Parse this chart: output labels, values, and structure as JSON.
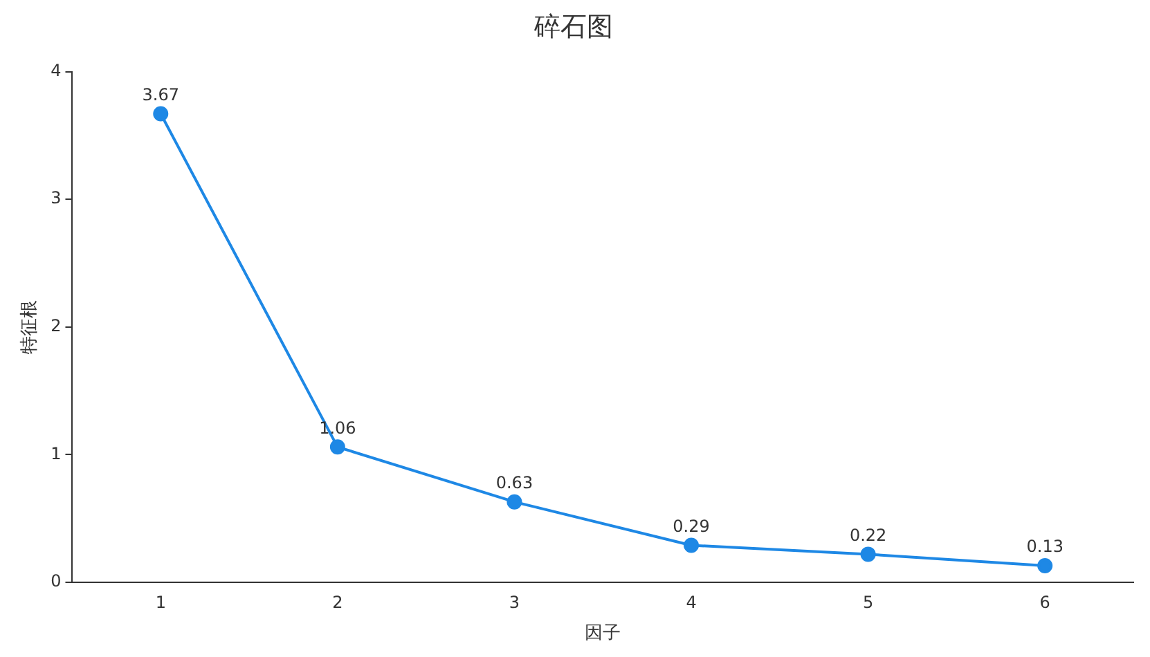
{
  "chart_data": {
    "type": "line",
    "title": "碎石图",
    "xlabel": "因子",
    "ylabel": "特征根",
    "categories": [
      "1",
      "2",
      "3",
      "4",
      "5",
      "6"
    ],
    "series": [
      {
        "color": "#1e88e5",
        "values": [
          3.67,
          1.06,
          0.63,
          0.29,
          0.22,
          0.13
        ]
      }
    ],
    "ylim": [
      0,
      4
    ],
    "yticks": [
      0,
      1,
      2,
      3,
      4
    ],
    "grid": false,
    "legend": false,
    "marker": "circle",
    "line_style": "solid",
    "data_labels": true
  }
}
